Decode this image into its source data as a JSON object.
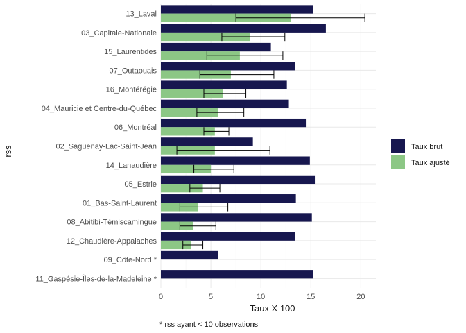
{
  "chart_data": {
    "type": "bar",
    "orientation": "horizontal",
    "categories": [
      "13_Laval",
      "03_Capitale-Nationale",
      "15_Laurentides",
      "07_Outaouais",
      "16_Montérégie",
      "04_Mauricie et Centre-du-Québec",
      "06_Montréal",
      "02_Saguenay-Lac-Saint-Jean",
      "14_Lanaudière",
      "05_Estrie",
      "01_Bas-Saint-Laurent",
      "08_Abitibi-Témiscamingue",
      "12_Chaudière-Appalaches",
      "09_Côte-Nord *",
      "11_Gaspésie-Îles-de-la-Madeleine *"
    ],
    "series": [
      {
        "name": "Taux brut",
        "color": "#17174f",
        "values": [
          15.2,
          16.5,
          11.0,
          13.4,
          12.6,
          12.8,
          14.5,
          9.2,
          14.9,
          15.4,
          13.5,
          15.1,
          13.4,
          5.7,
          15.2
        ]
      },
      {
        "name": "Taux ajusté",
        "color": "#8cc785",
        "values": [
          13.0,
          8.9,
          7.9,
          7.0,
          6.2,
          5.7,
          5.4,
          5.4,
          5.0,
          4.2,
          3.7,
          3.2,
          3.0,
          null,
          null
        ],
        "error_low": [
          7.5,
          6.1,
          4.6,
          3.9,
          4.3,
          3.6,
          4.3,
          1.6,
          3.3,
          2.9,
          1.9,
          1.9,
          2.2,
          null,
          null
        ],
        "error_high": [
          20.4,
          12.4,
          12.2,
          11.3,
          8.5,
          8.3,
          6.8,
          10.9,
          7.3,
          5.9,
          6.7,
          5.5,
          4.2,
          null,
          null
        ]
      }
    ],
    "xlabel": "Taux X 100",
    "ylabel": "rss",
    "xlim": [
      0,
      21.5
    ],
    "xticks": [
      0,
      5,
      10,
      15,
      20
    ],
    "grid": true,
    "legend_position": "right",
    "caption": "* rss ayant < 10 observations"
  }
}
